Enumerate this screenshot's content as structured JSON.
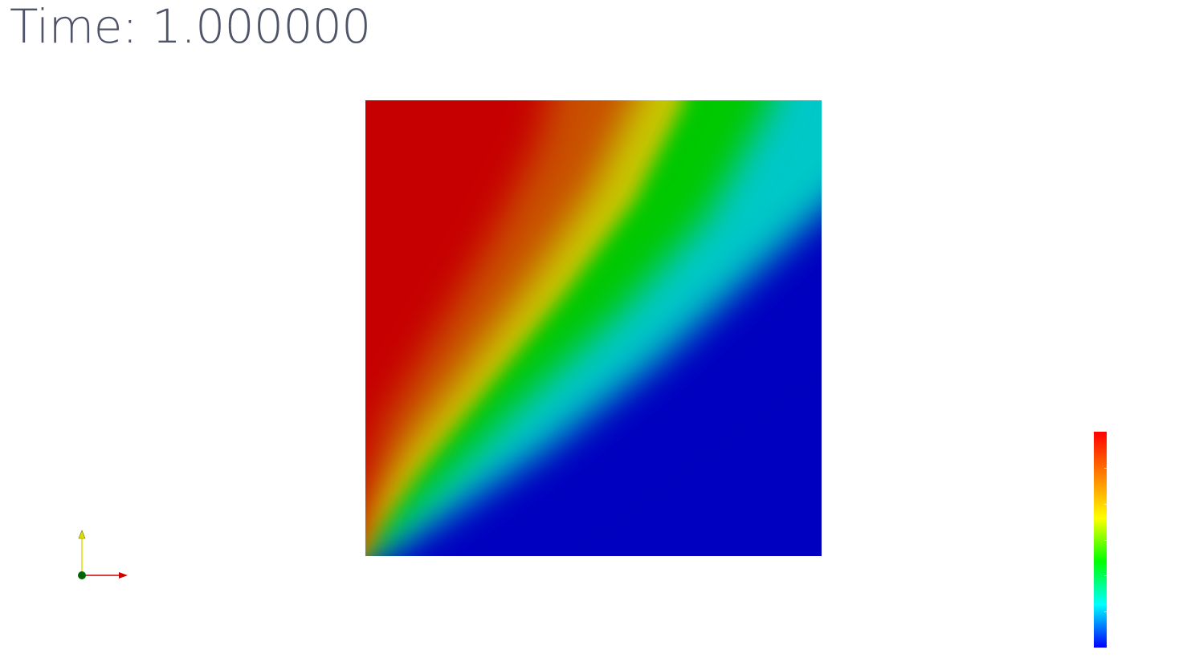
{
  "time_annotation": {
    "text": "Time: 1.000000",
    "color": "#4f5469"
  },
  "field_plot": {
    "colormap": "rainbow",
    "band_colors": [
      "#c60000",
      "#c8c800",
      "#00c800",
      "#00c8c8",
      "#0000c0"
    ]
  },
  "color_legend": {
    "gradient_colors": [
      "#ff0000",
      "#ff8000",
      "#ffff00",
      "#00ff00",
      "#00ffff",
      "#0000ff"
    ],
    "tick_count": 5
  },
  "orientation_axes": {
    "x_axis_color": "#cc0000",
    "y_axis_color": "#e0e000",
    "z_axis_color": "#006400"
  }
}
